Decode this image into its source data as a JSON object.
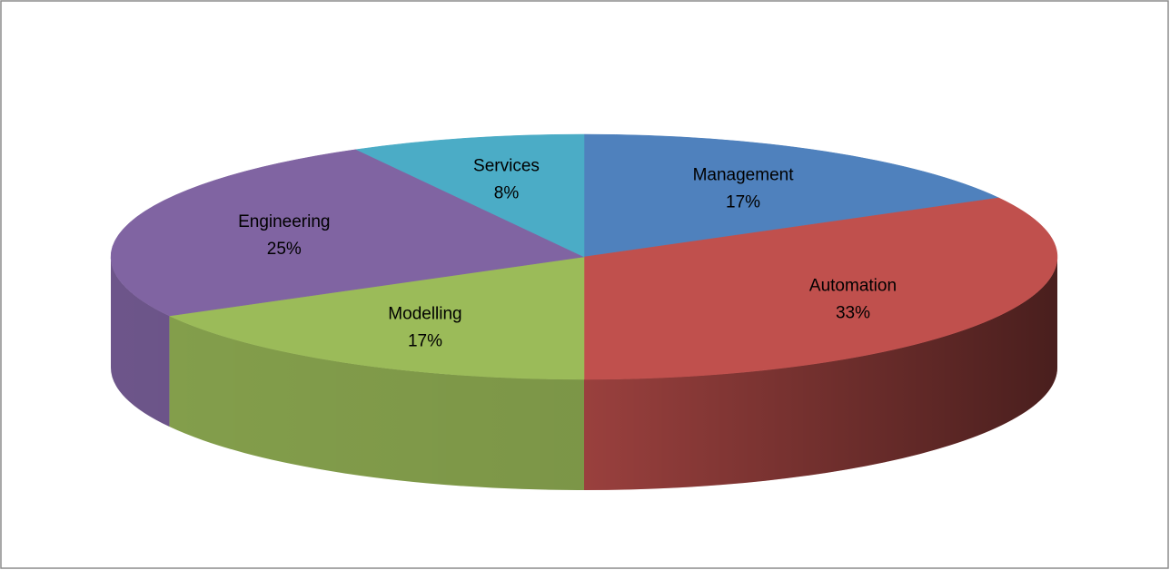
{
  "chart_data": {
    "type": "pie3d",
    "categories": [
      "Management",
      "Automation",
      "Modelling",
      "Engineering",
      "Services"
    ],
    "values": [
      17,
      33,
      17,
      25,
      8
    ],
    "value_labels": [
      "17%",
      "33%",
      "17%",
      "25%",
      "8%"
    ],
    "colors": [
      "#4f81bd",
      "#c0504d",
      "#9bbb59",
      "#8064a2",
      "#4bacc6"
    ]
  }
}
